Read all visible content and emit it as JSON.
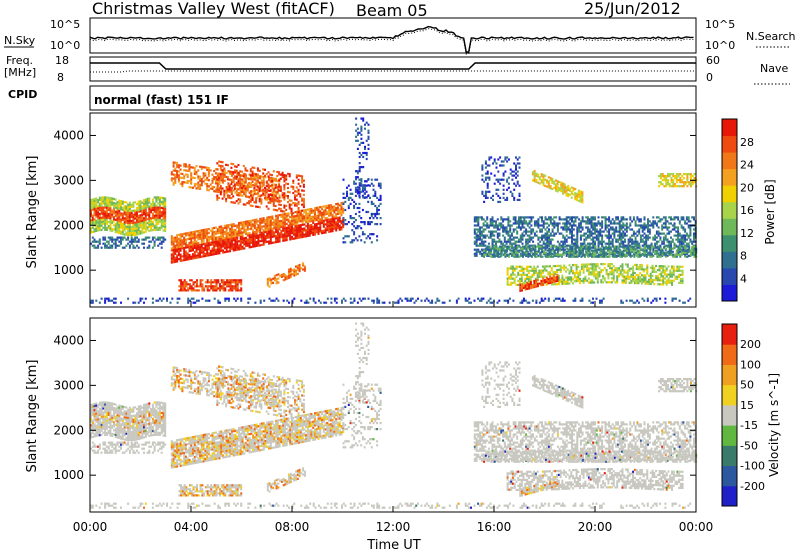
{
  "header": {
    "title": "Christmas Valley West (fitACF)",
    "beam": "Beam 05",
    "date": "25/Jun/2012"
  },
  "nsky_panel": {
    "left_label": "N.Sky",
    "right_label": "N.Search",
    "left_ticks": [
      "10^5",
      "10^0"
    ],
    "right_ticks": [
      "10^5",
      "10^0"
    ]
  },
  "freq_panel": {
    "left_label_1": "Freq.",
    "left_label_2": "[MHz]",
    "right_label": "Nave",
    "left_ticks": [
      "18",
      "8"
    ],
    "right_ticks": [
      "60",
      "0"
    ]
  },
  "cpid": {
    "label": "CPID",
    "text": "normal (fast) 151 IF"
  },
  "chart_data": [
    {
      "type": "heatmap",
      "title": "Power",
      "ylabel": "Slant Range [km]",
      "xlabel": "Time UT",
      "x_ticks": [
        "00:00",
        "04:00",
        "08:00",
        "12:00",
        "16:00",
        "20:00",
        "00:00"
      ],
      "y_ticks": [
        1000,
        2000,
        3000,
        4000
      ],
      "ylim": [
        180,
        4500
      ],
      "xlim_hours": [
        0,
        24
      ],
      "colorbar": {
        "label": "Power [dB]",
        "ticks": [
          4,
          8,
          12,
          16,
          20,
          24,
          28
        ],
        "colors": [
          "#1c1cd8",
          "#2848b0",
          "#2f6f90",
          "#3c8f6f",
          "#6fb85a",
          "#a8d44c",
          "#f0d000",
          "#f4a020",
          "#f07818",
          "#ef4a10",
          "#e81808"
        ]
      },
      "features": [
        {
          "t": [
            0,
            3
          ],
          "range": [
            1950,
            2550
          ],
          "level": "strong"
        },
        {
          "t": [
            3.2,
            10
          ],
          "range": [
            1200,
            2200
          ],
          "level": "strong"
        },
        {
          "t": [
            3.2,
            8.5
          ],
          "range": [
            2600,
            3600
          ],
          "level": "strong"
        },
        {
          "t": [
            3.5,
            6
          ],
          "range": [
            500,
            800
          ],
          "level": "strong"
        },
        {
          "t": [
            15.5,
            24
          ],
          "range": [
            1300,
            2200
          ],
          "level": "weak"
        },
        {
          "t": [
            17,
            23
          ],
          "range": [
            700,
            1100
          ],
          "level": "moderate"
        },
        {
          "t": [
            17.5,
            19.5
          ],
          "range": [
            2600,
            3300
          ],
          "level": "moderate"
        }
      ]
    },
    {
      "type": "heatmap",
      "title": "Velocity",
      "ylabel": "Slant Range [km]",
      "xlabel": "Time UT",
      "x_ticks": [
        "00:00",
        "04:00",
        "08:00",
        "12:00",
        "16:00",
        "20:00",
        "00:00"
      ],
      "y_ticks": [
        1000,
        2000,
        3000,
        4000
      ],
      "ylim": [
        180,
        4500
      ],
      "xlim_hours": [
        0,
        24
      ],
      "colorbar": {
        "label": "Velocity [m s^-1]",
        "ticks": [
          200,
          100,
          50,
          15,
          -15,
          -50,
          -100,
          -200
        ],
        "colors": [
          "#2020c8",
          "#2c58a0",
          "#3a7a6a",
          "#60b840",
          "#c8c8c0",
          "#f0d020",
          "#f0a020",
          "#f06a18",
          "#e82010"
        ]
      }
    }
  ]
}
